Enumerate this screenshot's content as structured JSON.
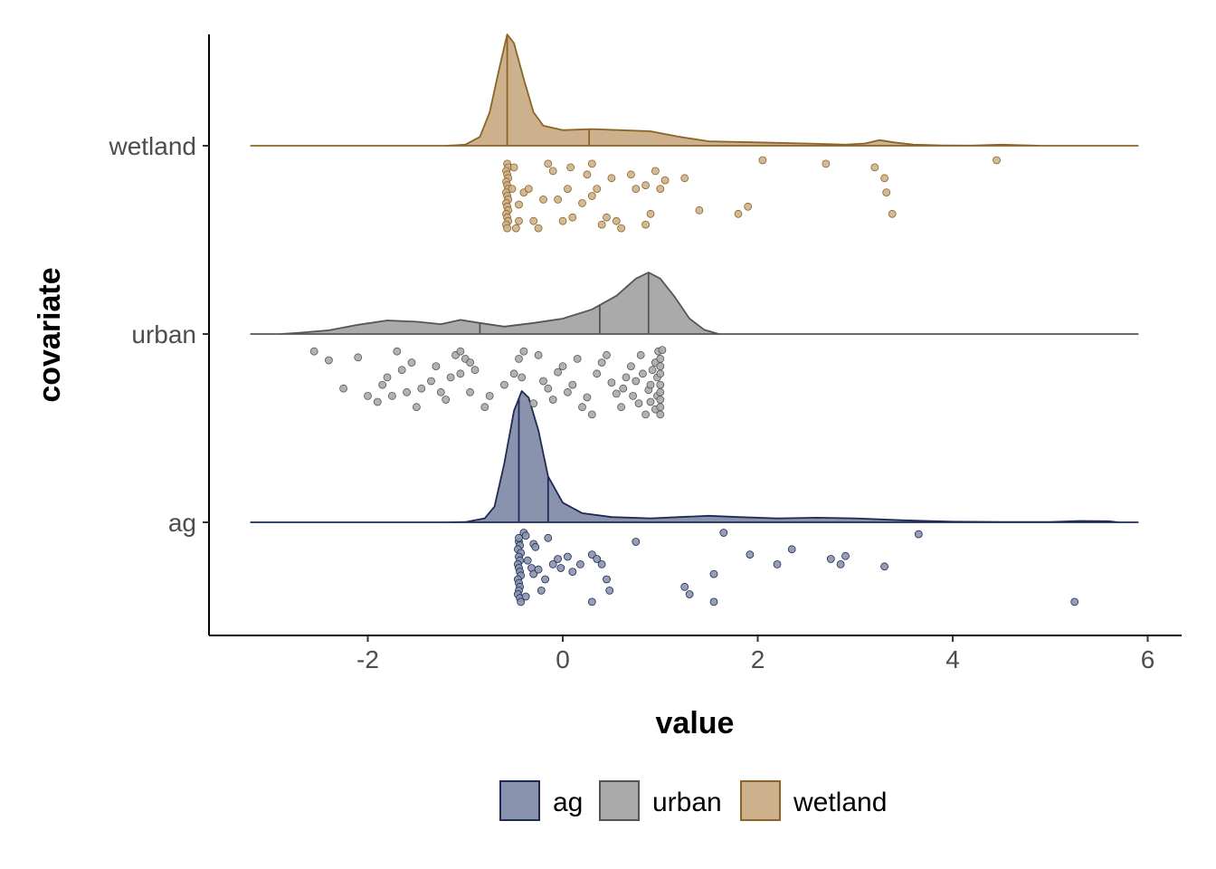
{
  "chart_data": {
    "type": "raincloud",
    "xlabel": "value",
    "ylabel": "covariate",
    "xlim": [
      -3.6,
      6.2
    ],
    "x_ticks": [
      -2,
      0,
      2,
      4,
      6
    ],
    "x_tick_labels": [
      "-2",
      "0",
      "2",
      "4",
      "6"
    ],
    "categories": [
      "ag",
      "urban",
      "wetland"
    ],
    "legend_position": "bottom",
    "series": [
      {
        "name": "ag",
        "fill": "#8a93ad",
        "line": "#1f2a55",
        "density_range": [
          -3.2,
          5.9
        ],
        "density": [
          [
            -3.2,
            0
          ],
          [
            -1.2,
            0
          ],
          [
            -1.0,
            0.002
          ],
          [
            -0.8,
            0.03
          ],
          [
            -0.7,
            0.12
          ],
          [
            -0.6,
            0.45
          ],
          [
            -0.5,
            0.85
          ],
          [
            -0.42,
            1.0
          ],
          [
            -0.35,
            0.95
          ],
          [
            -0.25,
            0.7
          ],
          [
            -0.15,
            0.35
          ],
          [
            0.0,
            0.15
          ],
          [
            0.2,
            0.07
          ],
          [
            0.5,
            0.04
          ],
          [
            0.9,
            0.03
          ],
          [
            1.2,
            0.04
          ],
          [
            1.5,
            0.05
          ],
          [
            1.8,
            0.04
          ],
          [
            2.2,
            0.03
          ],
          [
            2.6,
            0.035
          ],
          [
            3.0,
            0.03
          ],
          [
            3.5,
            0.015
          ],
          [
            4.0,
            0.005
          ],
          [
            4.5,
            0.002
          ],
          [
            5.0,
            0.003
          ],
          [
            5.3,
            0.01
          ],
          [
            5.6,
            0.008
          ],
          [
            5.7,
            0
          ],
          [
            5.9,
            0
          ]
        ],
        "quantiles": [
          -0.45,
          -0.15
        ],
        "points": [
          [
            -0.45,
            0.85
          ],
          [
            -0.44,
            0.8
          ],
          [
            -0.46,
            0.75
          ],
          [
            -0.43,
            0.7
          ],
          [
            -0.45,
            0.65
          ],
          [
            -0.44,
            0.6
          ],
          [
            -0.46,
            0.55
          ],
          [
            -0.45,
            0.5
          ],
          [
            -0.44,
            0.45
          ],
          [
            -0.43,
            0.4
          ],
          [
            -0.46,
            0.35
          ],
          [
            -0.45,
            0.3
          ],
          [
            -0.44,
            0.25
          ],
          [
            -0.45,
            0.2
          ],
          [
            -0.46,
            0.15
          ],
          [
            -0.44,
            0.1
          ],
          [
            -0.43,
            0.05
          ],
          [
            -0.45,
            0.9
          ],
          [
            -0.4,
            0.97
          ],
          [
            -0.38,
            0.93
          ],
          [
            -0.3,
            0.82
          ],
          [
            -0.28,
            0.78
          ],
          [
            -0.36,
            0.6
          ],
          [
            -0.32,
            0.5
          ],
          [
            -0.3,
            0.42
          ],
          [
            -0.25,
            0.48
          ],
          [
            -0.18,
            0.35
          ],
          [
            -0.22,
            0.2
          ],
          [
            -0.38,
            0.12
          ],
          [
            -0.15,
            0.9
          ],
          [
            -0.1,
            0.55
          ],
          [
            -0.05,
            0.62
          ],
          [
            -0.02,
            0.5
          ],
          [
            0.05,
            0.65
          ],
          [
            0.3,
            0.68
          ],
          [
            0.18,
            0.55
          ],
          [
            0.1,
            0.45
          ],
          [
            0.45,
            0.35
          ],
          [
            0.4,
            0.55
          ],
          [
            0.3,
            0.05
          ],
          [
            0.35,
            0.62
          ],
          [
            0.75,
            0.85
          ],
          [
            0.48,
            0.2
          ],
          [
            1.25,
            0.25
          ],
          [
            1.3,
            0.15
          ],
          [
            1.55,
            0.05
          ],
          [
            1.55,
            0.42
          ],
          [
            1.65,
            0.97
          ],
          [
            1.92,
            0.68
          ],
          [
            2.2,
            0.55
          ],
          [
            2.35,
            0.75
          ],
          [
            2.75,
            0.62
          ],
          [
            2.85,
            0.55
          ],
          [
            2.9,
            0.66
          ],
          [
            3.3,
            0.52
          ],
          [
            3.65,
            0.95
          ],
          [
            5.25,
            0.05
          ]
        ]
      },
      {
        "name": "urban",
        "fill": "#aaaaaa",
        "line": "#555555",
        "density_range": [
          -3.2,
          5.9
        ],
        "density": [
          [
            -3.2,
            0
          ],
          [
            -2.9,
            0
          ],
          [
            -2.7,
            0.02
          ],
          [
            -2.4,
            0.06
          ],
          [
            -2.1,
            0.15
          ],
          [
            -1.8,
            0.22
          ],
          [
            -1.5,
            0.2
          ],
          [
            -1.25,
            0.16
          ],
          [
            -1.05,
            0.23
          ],
          [
            -0.85,
            0.18
          ],
          [
            -0.6,
            0.12
          ],
          [
            -0.3,
            0.18
          ],
          [
            0.0,
            0.25
          ],
          [
            0.3,
            0.4
          ],
          [
            0.55,
            0.62
          ],
          [
            0.75,
            0.9
          ],
          [
            0.88,
            1.0
          ],
          [
            1.0,
            0.9
          ],
          [
            1.15,
            0.6
          ],
          [
            1.3,
            0.25
          ],
          [
            1.45,
            0.07
          ],
          [
            1.6,
            0
          ],
          [
            5.9,
            0
          ]
        ],
        "quantiles": [
          -0.85,
          0.38,
          0.88
        ],
        "points": [
          [
            -2.55,
            0.9
          ],
          [
            -2.4,
            0.78
          ],
          [
            -2.25,
            0.4
          ],
          [
            -2.1,
            0.82
          ],
          [
            -2.0,
            0.3
          ],
          [
            -1.9,
            0.22
          ],
          [
            -1.85,
            0.45
          ],
          [
            -1.8,
            0.55
          ],
          [
            -1.7,
            0.9
          ],
          [
            -1.75,
            0.3
          ],
          [
            -1.65,
            0.65
          ],
          [
            -1.6,
            0.35
          ],
          [
            -1.55,
            0.75
          ],
          [
            -1.5,
            0.15
          ],
          [
            -1.45,
            0.4
          ],
          [
            -1.35,
            0.5
          ],
          [
            -1.3,
            0.7
          ],
          [
            -1.25,
            0.35
          ],
          [
            -1.2,
            0.25
          ],
          [
            -1.15,
            0.55
          ],
          [
            -1.1,
            0.85
          ],
          [
            -1.05,
            0.9
          ],
          [
            -1.0,
            0.8
          ],
          [
            -0.95,
            0.75
          ],
          [
            -0.9,
            0.65
          ],
          [
            -1.05,
            0.6
          ],
          [
            -0.95,
            0.35
          ],
          [
            -0.8,
            0.15
          ],
          [
            -0.75,
            0.3
          ],
          [
            -0.6,
            0.45
          ],
          [
            -0.5,
            0.6
          ],
          [
            -0.45,
            0.8
          ],
          [
            -0.42,
            0.55
          ],
          [
            -0.4,
            0.9
          ],
          [
            -0.3,
            0.2
          ],
          [
            -0.25,
            0.85
          ],
          [
            -0.2,
            0.5
          ],
          [
            -0.15,
            0.4
          ],
          [
            -0.1,
            0.25
          ],
          [
            -0.05,
            0.62
          ],
          [
            0.0,
            0.7
          ],
          [
            0.05,
            0.35
          ],
          [
            0.1,
            0.45
          ],
          [
            0.15,
            0.8
          ],
          [
            0.2,
            0.15
          ],
          [
            0.25,
            0.28
          ],
          [
            0.3,
            0.05
          ],
          [
            0.35,
            0.6
          ],
          [
            0.4,
            0.75
          ],
          [
            0.45,
            0.85
          ],
          [
            0.5,
            0.48
          ],
          [
            0.55,
            0.33
          ],
          [
            0.6,
            0.15
          ],
          [
            0.62,
            0.4
          ],
          [
            0.65,
            0.55
          ],
          [
            0.7,
            0.7
          ],
          [
            0.72,
            0.3
          ],
          [
            0.75,
            0.5
          ],
          [
            0.78,
            0.2
          ],
          [
            0.8,
            0.85
          ],
          [
            0.82,
            0.6
          ],
          [
            0.85,
            0.05
          ],
          [
            0.88,
            0.38
          ],
          [
            0.9,
            0.45
          ],
          [
            0.9,
            0.22
          ],
          [
            0.92,
            0.65
          ],
          [
            0.95,
            0.75
          ],
          [
            0.95,
            0.12
          ],
          [
            0.97,
            0.3
          ],
          [
            0.97,
            0.55
          ],
          [
            0.98,
            0.9
          ],
          [
            1.0,
            0.05
          ],
          [
            1.0,
            0.15
          ],
          [
            1.0,
            0.25
          ],
          [
            1.0,
            0.35
          ],
          [
            1.0,
            0.45
          ],
          [
            1.0,
            0.6
          ],
          [
            1.0,
            0.7
          ],
          [
            1.0,
            0.8
          ],
          [
            1.02,
            0.92
          ]
        ]
      },
      {
        "name": "wetland",
        "fill": "#cdb18d",
        "line": "#8c6423",
        "density_range": [
          -3.2,
          5.9
        ],
        "density": [
          [
            -3.2,
            0
          ],
          [
            -1.2,
            0
          ],
          [
            -1.0,
            0.01
          ],
          [
            -0.85,
            0.08
          ],
          [
            -0.75,
            0.3
          ],
          [
            -0.65,
            0.7
          ],
          [
            -0.57,
            1.0
          ],
          [
            -0.5,
            0.92
          ],
          [
            -0.4,
            0.6
          ],
          [
            -0.3,
            0.3
          ],
          [
            -0.2,
            0.18
          ],
          [
            0.0,
            0.14
          ],
          [
            0.3,
            0.15
          ],
          [
            0.6,
            0.14
          ],
          [
            0.9,
            0.13
          ],
          [
            1.2,
            0.08
          ],
          [
            1.5,
            0.04
          ],
          [
            2.0,
            0.03
          ],
          [
            2.5,
            0.02
          ],
          [
            2.9,
            0.01
          ],
          [
            3.1,
            0.02
          ],
          [
            3.25,
            0.05
          ],
          [
            3.4,
            0.03
          ],
          [
            3.6,
            0.01
          ],
          [
            3.9,
            0.003
          ],
          [
            4.2,
            0.002
          ],
          [
            4.5,
            0.01
          ],
          [
            4.7,
            0.005
          ],
          [
            4.9,
            0
          ],
          [
            5.9,
            0
          ]
        ],
        "quantiles": [
          -0.57,
          0.27
        ],
        "points": [
          [
            -0.57,
            0.95
          ],
          [
            -0.56,
            0.9
          ],
          [
            -0.58,
            0.85
          ],
          [
            -0.57,
            0.8
          ],
          [
            -0.56,
            0.75
          ],
          [
            -0.58,
            0.7
          ],
          [
            -0.57,
            0.65
          ],
          [
            -0.56,
            0.6
          ],
          [
            -0.58,
            0.55
          ],
          [
            -0.57,
            0.5
          ],
          [
            -0.56,
            0.45
          ],
          [
            -0.58,
            0.4
          ],
          [
            -0.57,
            0.35
          ],
          [
            -0.56,
            0.3
          ],
          [
            -0.58,
            0.25
          ],
          [
            -0.57,
            0.2
          ],
          [
            -0.56,
            0.15
          ],
          [
            -0.58,
            0.1
          ],
          [
            -0.57,
            0.05
          ],
          [
            -0.5,
            0.9
          ],
          [
            -0.48,
            0.05
          ],
          [
            -0.45,
            0.15
          ],
          [
            -0.52,
            0.6
          ],
          [
            -0.4,
            0.55
          ],
          [
            -0.45,
            0.38
          ],
          [
            -0.35,
            0.6
          ],
          [
            -0.3,
            0.15
          ],
          [
            -0.25,
            0.05
          ],
          [
            -0.2,
            0.45
          ],
          [
            -0.15,
            0.95
          ],
          [
            -0.1,
            0.85
          ],
          [
            -0.05,
            0.45
          ],
          [
            0.05,
            0.6
          ],
          [
            0.0,
            0.15
          ],
          [
            0.1,
            0.2
          ],
          [
            0.08,
            0.9
          ],
          [
            0.2,
            0.4
          ],
          [
            0.25,
            0.8
          ],
          [
            0.3,
            0.95
          ],
          [
            0.3,
            0.5
          ],
          [
            0.35,
            0.6
          ],
          [
            0.4,
            0.1
          ],
          [
            0.45,
            0.2
          ],
          [
            0.5,
            0.75
          ],
          [
            0.55,
            0.15
          ],
          [
            0.6,
            0.05
          ],
          [
            0.7,
            0.8
          ],
          [
            0.75,
            0.6
          ],
          [
            0.85,
            0.65
          ],
          [
            0.9,
            0.25
          ],
          [
            0.85,
            0.1
          ],
          [
            0.95,
            0.85
          ],
          [
            1.0,
            0.6
          ],
          [
            1.05,
            0.72
          ],
          [
            1.25,
            0.75
          ],
          [
            1.4,
            0.3
          ],
          [
            1.8,
            0.25
          ],
          [
            1.9,
            0.35
          ],
          [
            2.05,
            1.0
          ],
          [
            2.7,
            0.95
          ],
          [
            3.2,
            0.9
          ],
          [
            3.3,
            0.75
          ],
          [
            3.32,
            0.55
          ],
          [
            3.38,
            0.25
          ],
          [
            4.45,
            1.0
          ]
        ]
      }
    ]
  }
}
